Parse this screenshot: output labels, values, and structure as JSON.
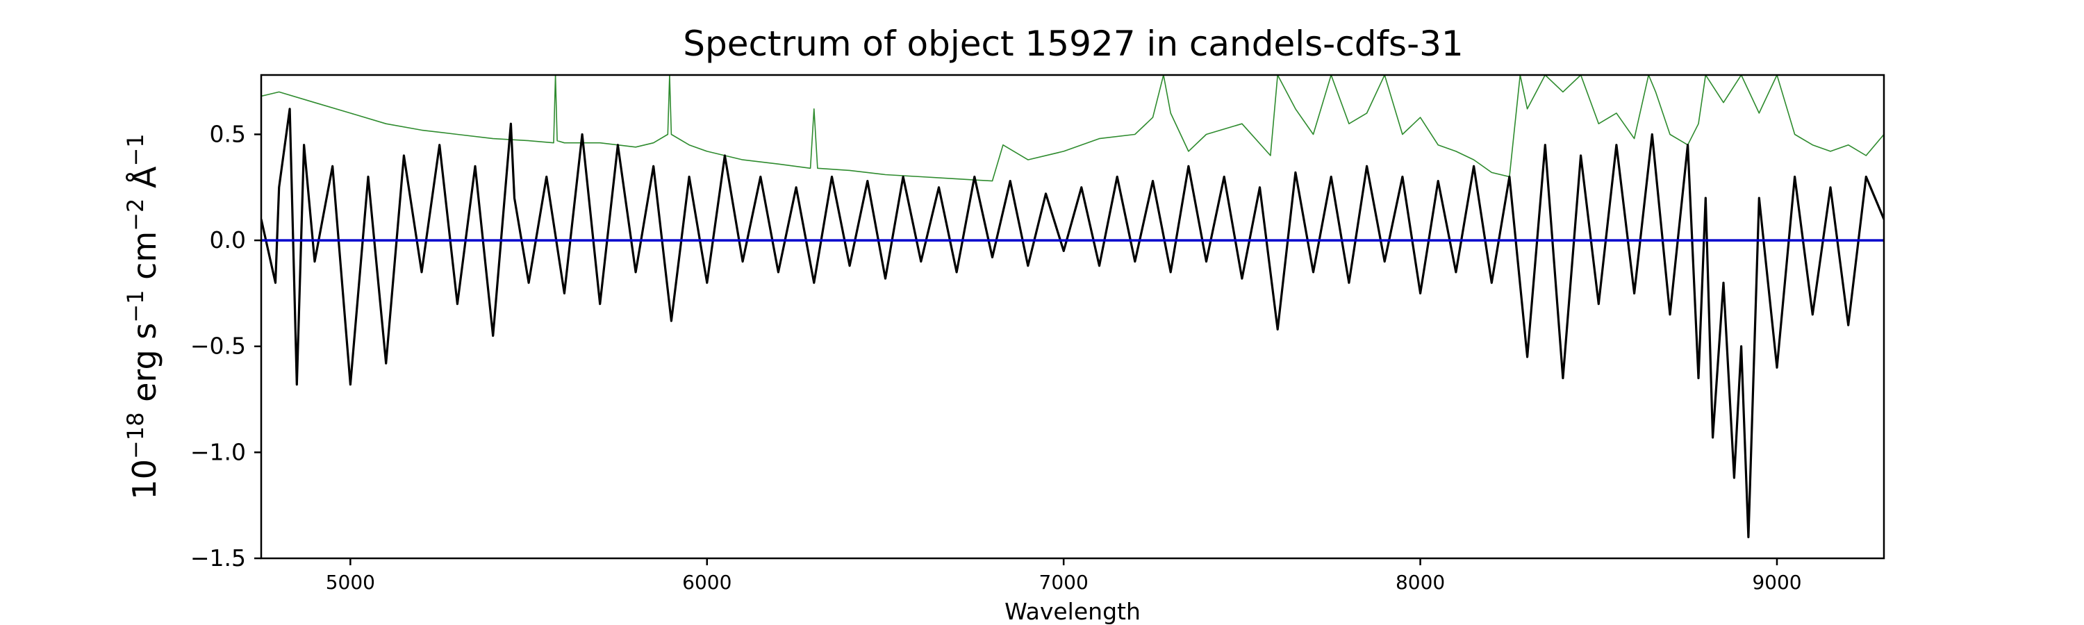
{
  "chart_data": {
    "type": "line",
    "title": "Spectrum of object 15927 in candels-cdfs-31",
    "xlabel": "Wavelength",
    "ylabel": "10^-18 erg s^-1 cm^-2 Å^-1",
    "ylabel_parts": {
      "base": "10",
      "exp": "−18",
      "erg": "erg s",
      "s_exp": "−1",
      "cm": "cm",
      "cm_exp": "−2",
      "unit": "Å",
      "unit_exp": "−1"
    },
    "xlim": [
      4750,
      9300
    ],
    "ylim": [
      -1.5,
      0.78
    ],
    "xticks": [
      5000,
      6000,
      7000,
      8000,
      9000
    ],
    "xtick_labels": [
      "5000",
      "6000",
      "7000",
      "8000",
      "9000"
    ],
    "yticks": [
      -1.5,
      -1.0,
      -0.5,
      0.0,
      0.5
    ],
    "ytick_labels": [
      "−1.5",
      "−1.0",
      "−0.5",
      "0.0",
      "0.5"
    ],
    "grid": false,
    "legend": "none",
    "series": [
      {
        "role": "error",
        "color": "#2e8b2e",
        "x": [
          4750,
          4800,
          4900,
          5000,
          5100,
          5200,
          5300,
          5400,
          5500,
          5570,
          5575,
          5580,
          5600,
          5700,
          5800,
          5850,
          5890,
          5895,
          5900,
          5950,
          6000,
          6100,
          6200,
          6290,
          6300,
          6310,
          6400,
          6500,
          6600,
          6700,
          6800,
          6830,
          6900,
          7000,
          7100,
          7200,
          7250,
          7280,
          7300,
          7350,
          7400,
          7500,
          7580,
          7600,
          7650,
          7700,
          7750,
          7800,
          7850,
          7900,
          7950,
          8000,
          8050,
          8100,
          8150,
          8200,
          8250,
          8280,
          8300,
          8350,
          8400,
          8450,
          8500,
          8550,
          8600,
          8640,
          8660,
          8700,
          8750,
          8780,
          8800,
          8850,
          8900,
          8950,
          9000,
          9050,
          9100,
          9150,
          9200,
          9250,
          9300
        ],
        "y": [
          0.68,
          0.7,
          0.65,
          0.6,
          0.55,
          0.52,
          0.5,
          0.48,
          0.47,
          0.46,
          0.78,
          0.47,
          0.46,
          0.46,
          0.44,
          0.46,
          0.5,
          0.78,
          0.5,
          0.45,
          0.42,
          0.38,
          0.36,
          0.34,
          0.62,
          0.34,
          0.33,
          0.31,
          0.3,
          0.29,
          0.28,
          0.45,
          0.38,
          0.42,
          0.48,
          0.5,
          0.58,
          0.78,
          0.6,
          0.42,
          0.5,
          0.55,
          0.4,
          0.78,
          0.62,
          0.5,
          0.78,
          0.55,
          0.6,
          0.78,
          0.5,
          0.58,
          0.45,
          0.42,
          0.38,
          0.32,
          0.3,
          0.78,
          0.62,
          0.78,
          0.7,
          0.78,
          0.55,
          0.6,
          0.48,
          0.78,
          0.7,
          0.5,
          0.45,
          0.55,
          0.78,
          0.65,
          0.78,
          0.6,
          0.78,
          0.5,
          0.45,
          0.42,
          0.45,
          0.4,
          0.5
        ]
      },
      {
        "role": "flux",
        "color": "#000000",
        "x": [
          4750,
          4790,
          4800,
          4830,
          4850,
          4870,
          4900,
          4950,
          5000,
          5050,
          5100,
          5150,
          5200,
          5250,
          5300,
          5350,
          5400,
          5450,
          5460,
          5500,
          5550,
          5600,
          5650,
          5700,
          5750,
          5800,
          5850,
          5900,
          5950,
          6000,
          6050,
          6100,
          6150,
          6200,
          6250,
          6300,
          6350,
          6400,
          6450,
          6500,
          6550,
          6600,
          6650,
          6700,
          6750,
          6800,
          6850,
          6900,
          6950,
          7000,
          7050,
          7100,
          7150,
          7200,
          7250,
          7300,
          7350,
          7400,
          7450,
          7500,
          7550,
          7600,
          7650,
          7700,
          7750,
          7800,
          7850,
          7900,
          7950,
          8000,
          8050,
          8100,
          8150,
          8200,
          8250,
          8300,
          8350,
          8400,
          8450,
          8500,
          8550,
          8600,
          8650,
          8700,
          8750,
          8780,
          8800,
          8820,
          8850,
          8880,
          8900,
          8920,
          8950,
          9000,
          9050,
          9100,
          9150,
          9200,
          9250,
          9300
        ],
        "y": [
          0.1,
          -0.2,
          0.25,
          0.62,
          -0.68,
          0.45,
          -0.1,
          0.35,
          -0.68,
          0.3,
          -0.58,
          0.4,
          -0.15,
          0.45,
          -0.3,
          0.35,
          -0.45,
          0.55,
          0.2,
          -0.2,
          0.3,
          -0.25,
          0.5,
          -0.3,
          0.45,
          -0.15,
          0.35,
          -0.38,
          0.3,
          -0.2,
          0.4,
          -0.1,
          0.3,
          -0.15,
          0.25,
          -0.2,
          0.3,
          -0.12,
          0.28,
          -0.18,
          0.3,
          -0.1,
          0.25,
          -0.15,
          0.3,
          -0.08,
          0.28,
          -0.12,
          0.22,
          -0.05,
          0.25,
          -0.12,
          0.3,
          -0.1,
          0.28,
          -0.15,
          0.35,
          -0.1,
          0.3,
          -0.18,
          0.25,
          -0.42,
          0.32,
          -0.15,
          0.3,
          -0.2,
          0.35,
          -0.1,
          0.3,
          -0.25,
          0.28,
          -0.15,
          0.35,
          -0.2,
          0.3,
          -0.55,
          0.45,
          -0.65,
          0.4,
          -0.3,
          0.45,
          -0.25,
          0.5,
          -0.35,
          0.45,
          -0.65,
          0.2,
          -0.93,
          -0.2,
          -1.12,
          -0.5,
          -1.4,
          0.2,
          -0.6,
          0.3,
          -0.35,
          0.25,
          -0.4,
          0.3,
          0.1
        ]
      },
      {
        "role": "zero",
        "color": "#0000cc",
        "x": [
          4750,
          9300
        ],
        "y": [
          0.0,
          0.0
        ]
      }
    ]
  }
}
